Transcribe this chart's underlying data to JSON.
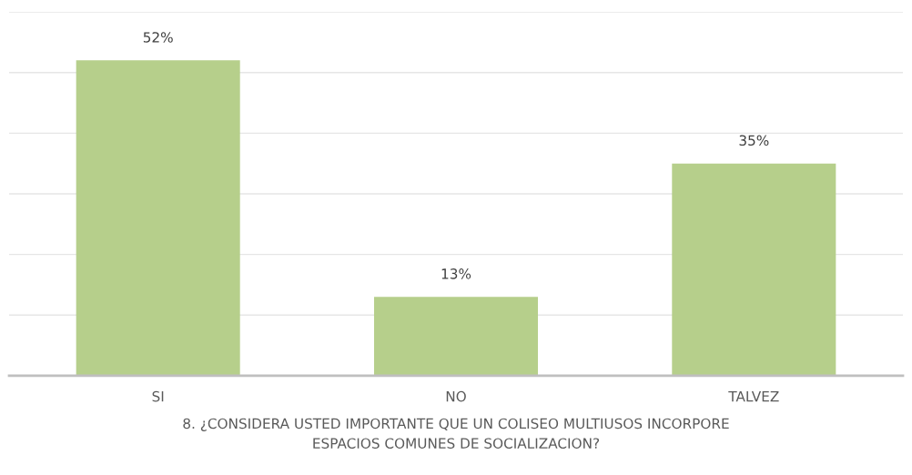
{
  "chart_data": {
    "type": "bar",
    "title": "8. ¿CONSIDERA USTED IMPORTANTE QUE UN COLISEO MULTIUSOS INCORPORE\nESPACIOS COMUNES DE SOCIALIZACION?",
    "categories": [
      "SI",
      "NO",
      "TALVEZ"
    ],
    "values": [
      52,
      13,
      35
    ],
    "value_labels": [
      "52%",
      "13%",
      "35%"
    ],
    "color": "#b6cf8b",
    "ylim": [
      0,
      60
    ],
    "yticks": [
      {
        "value": 0,
        "label": null
      },
      {
        "value": 10,
        "label": null
      },
      {
        "value": 20,
        "label": null
      },
      {
        "value": 30,
        "label": null
      },
      {
        "value": 40,
        "label": null
      },
      {
        "value": 50,
        "label": null
      },
      {
        "value": 60,
        "label": null
      }
    ],
    "grid": "y",
    "tick_labels": "x"
  }
}
